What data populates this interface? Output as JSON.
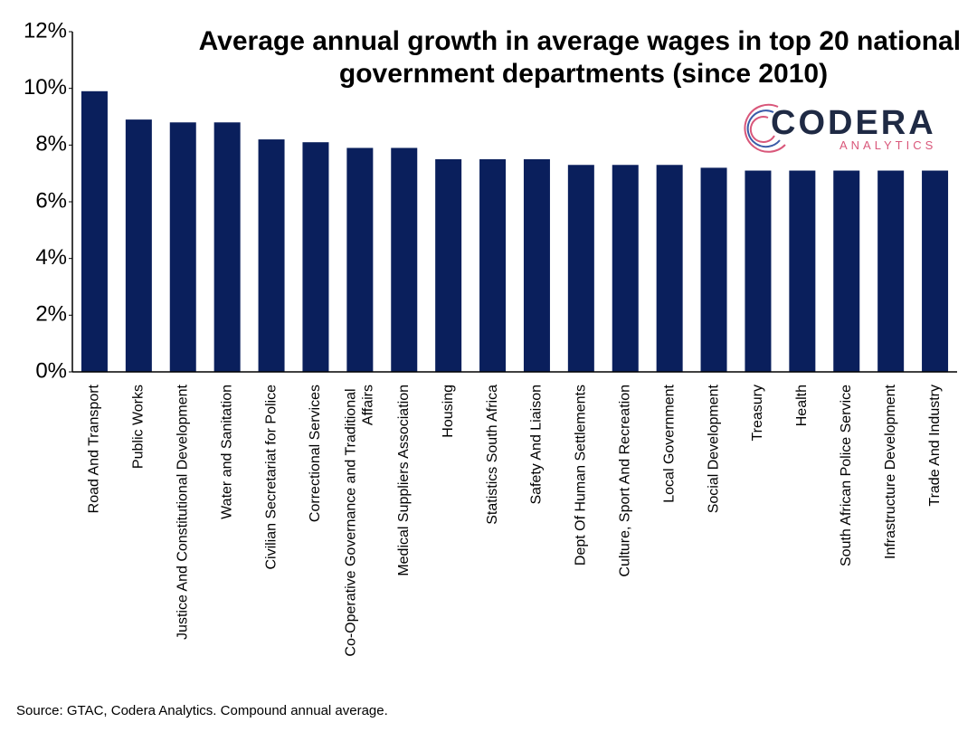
{
  "chart_data": {
    "type": "bar",
    "title": "Average annual growth in average wages in top 20 national government departments (since 2010)",
    "categories": [
      "Road And Transport",
      "Public Works",
      "Justice And Constitutional Development",
      "Water and Sanitation",
      "Civilian Secretariat for Police",
      "Correctional Services",
      "Co-Operative Governance and Traditional Affairs",
      "Medical Suppliers Association",
      "Housing",
      "Statistics South Africa",
      "Safety And Liaison",
      "Dept Of Human Settlements",
      "Culture, Sport And Recreation",
      "Local Government",
      "Social Development",
      "Treasury",
      "Health",
      "South African Police Service",
      "Infrastructure Development",
      "Trade And Industry"
    ],
    "values": [
      9.9,
      8.9,
      8.8,
      8.8,
      8.2,
      8.1,
      7.9,
      7.9,
      7.5,
      7.5,
      7.5,
      7.3,
      7.3,
      7.3,
      7.2,
      7.1,
      7.1,
      7.1,
      7.1,
      7.1
    ],
    "color": "#0a1f5c",
    "ylim": [
      0,
      12
    ],
    "yticks": [
      {
        "value": 0,
        "label": "0%"
      },
      {
        "value": 2,
        "label": "2%"
      },
      {
        "value": 4,
        "label": "4%"
      },
      {
        "value": 6,
        "label": "6%"
      },
      {
        "value": 8,
        "label": "8%"
      },
      {
        "value": 10,
        "label": "10%"
      },
      {
        "value": 12,
        "label": "12%"
      }
    ],
    "grid": false,
    "source": "Source: GTAC, Codera Analytics. Compound annual average.",
    "logo": {
      "name": "CODERA",
      "tagline": "ANALYTICS"
    }
  }
}
